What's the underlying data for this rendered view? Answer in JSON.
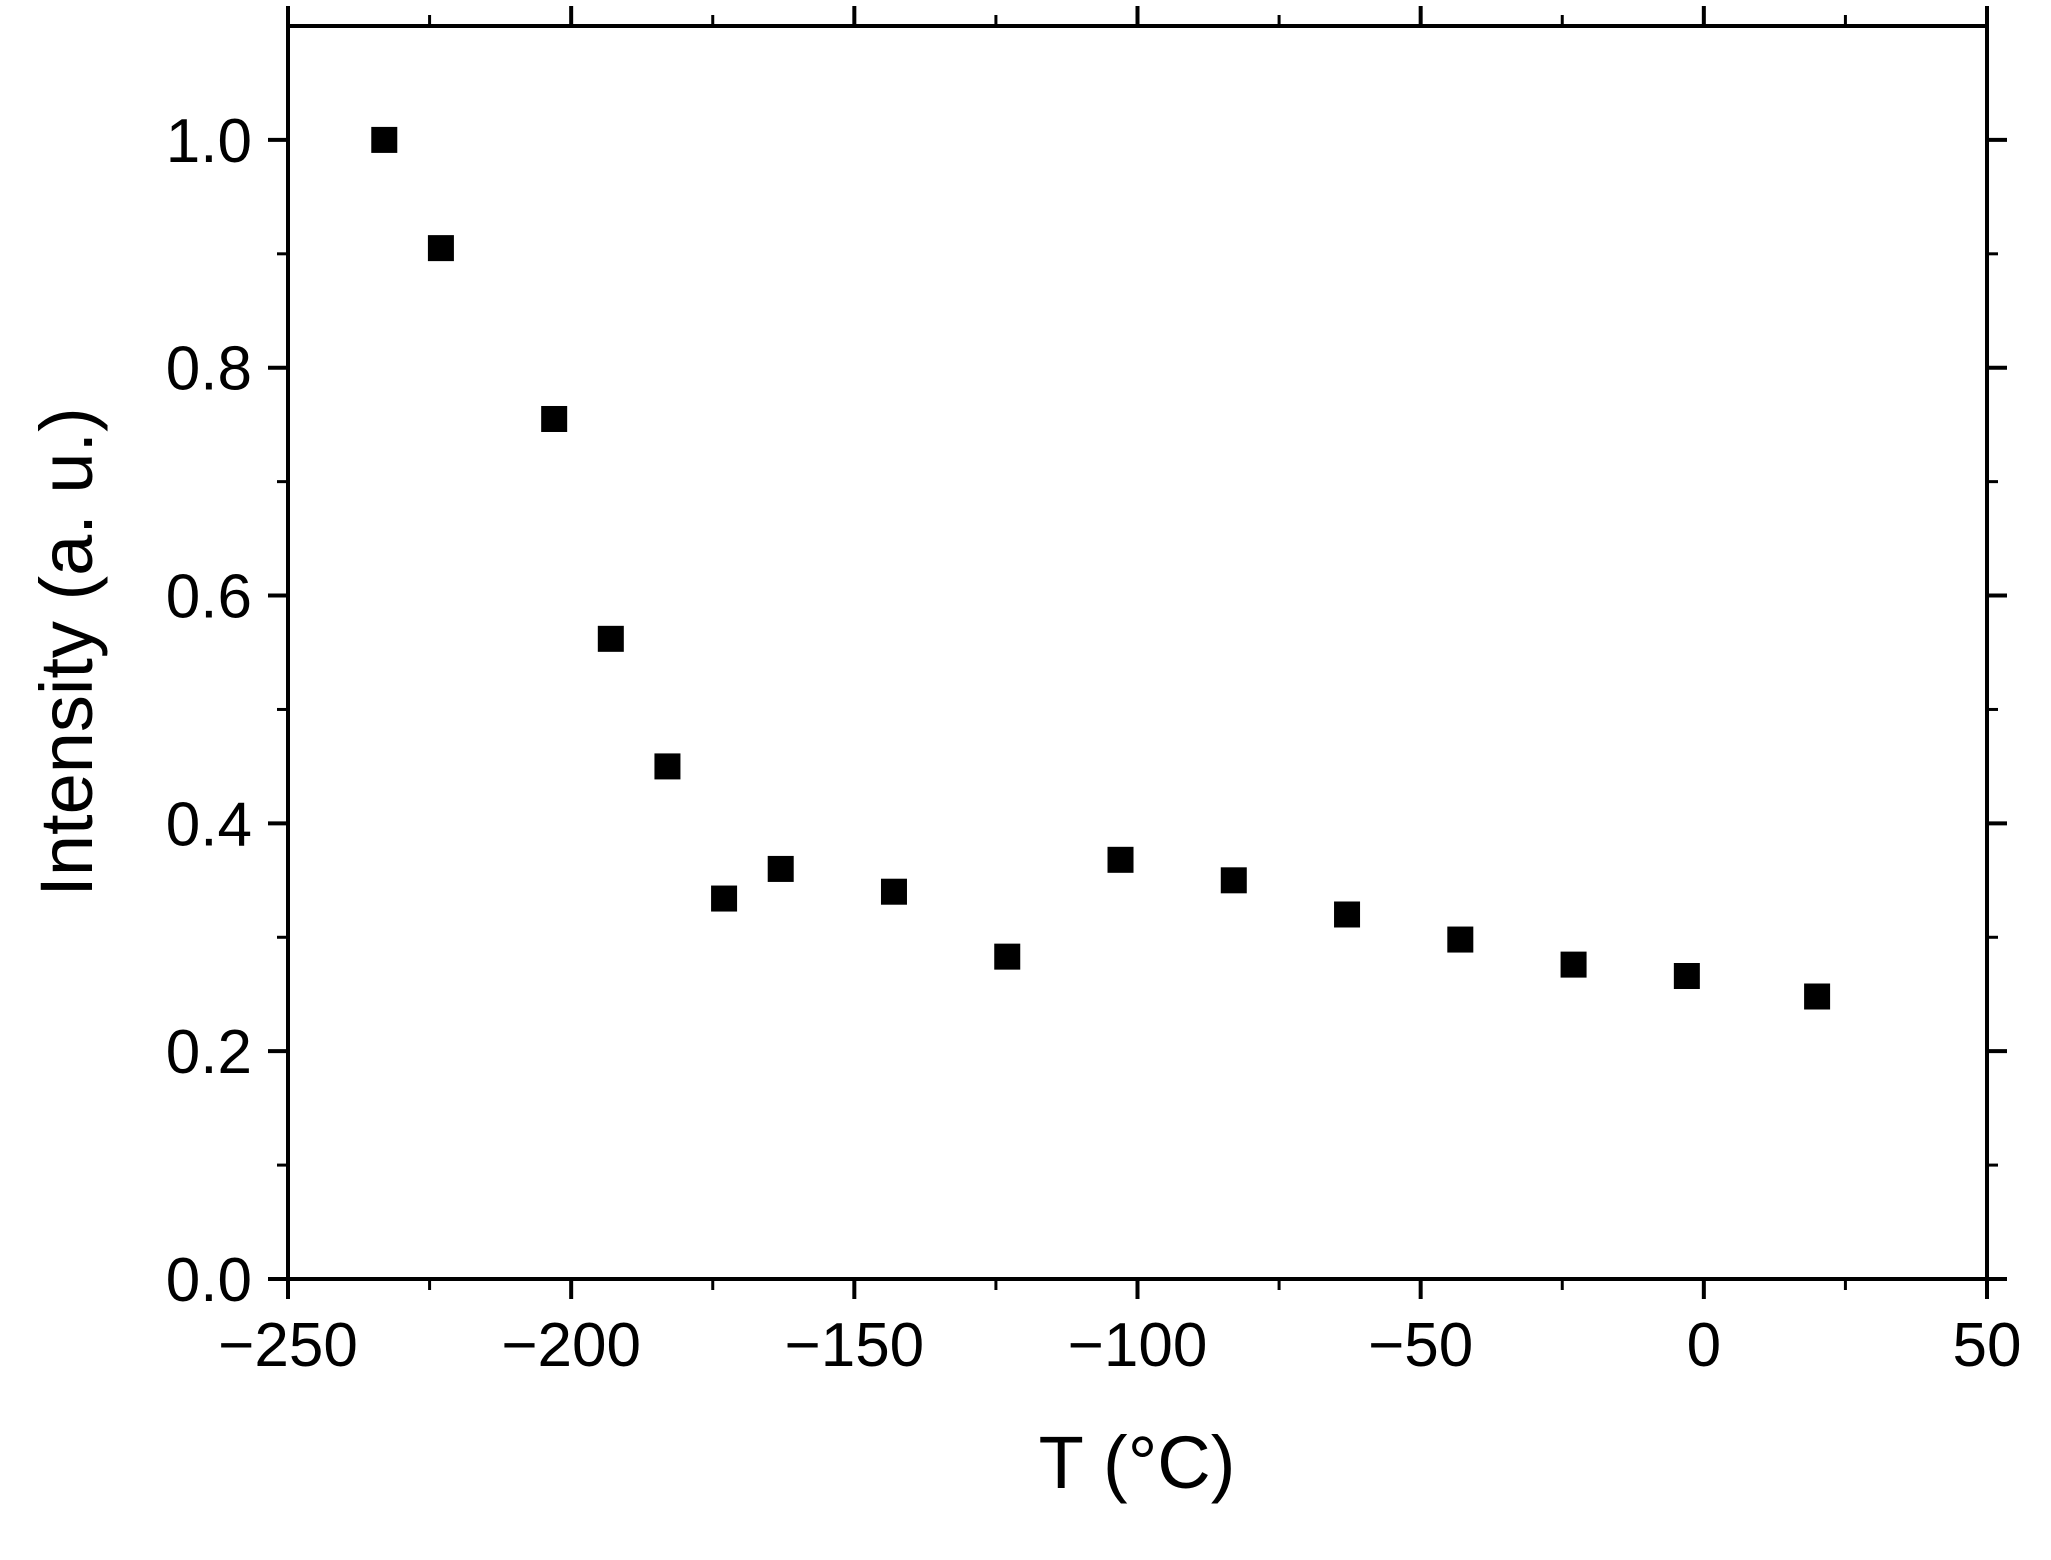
{
  "chart_data": {
    "type": "scatter",
    "title": "",
    "xlabel": "T (°C)",
    "ylabel": "Intensity (a. u.)",
    "xlim": [
      -250,
      50
    ],
    "ylim": [
      0.0,
      1.1
    ],
    "x_ticks": [
      -250,
      -200,
      -150,
      -100,
      -50,
      0,
      50
    ],
    "x_tick_labels": [
      "−250",
      "−200",
      "−150",
      "−100",
      "−50",
      "0",
      "50"
    ],
    "y_ticks": [
      0.0,
      0.2,
      0.4,
      0.6,
      0.8,
      1.0
    ],
    "y_tick_labels": [
      "0.0",
      "0.2",
      "0.4",
      "0.6",
      "0.8",
      "1.0"
    ],
    "x_minor_step": 25,
    "y_minor_step": 0.1,
    "grid": false,
    "marker": "square",
    "marker_color": "#000000",
    "series": [
      {
        "x": [
          -233,
          -223,
          -203,
          -193,
          -183,
          -173,
          -163,
          -143,
          -123,
          -103,
          -83,
          -63,
          -43,
          -23,
          -3,
          20
        ],
        "y": [
          1.0,
          0.905,
          0.755,
          0.562,
          0.45,
          0.334,
          0.36,
          0.34,
          0.283,
          0.368,
          0.35,
          0.32,
          0.298,
          0.276,
          0.266,
          0.248
        ]
      }
    ]
  }
}
